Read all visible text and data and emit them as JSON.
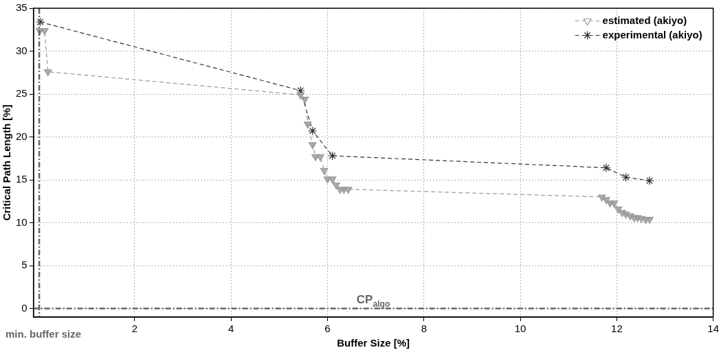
{
  "chart_data": {
    "type": "line",
    "xlabel": "Buffer Size [%]",
    "ylabel": "Critical Path Length [%]",
    "xlim": [
      -0.1,
      14
    ],
    "ylim": [
      -1,
      35
    ],
    "xticks": [
      2,
      4,
      6,
      8,
      10,
      12,
      14
    ],
    "yticks": [
      0,
      5,
      10,
      15,
      20,
      25,
      30,
      35
    ],
    "grid": true,
    "legend": "top right",
    "line_style": "dashed",
    "series": [
      {
        "name": "estimated (akiyo)",
        "color": "#999999",
        "marker": "triangle",
        "x": [
          0.03,
          0.13,
          0.2,
          5.44,
          5.53,
          5.59,
          5.69,
          5.75,
          5.85,
          5.93,
          6.0,
          6.1,
          6.18,
          6.26,
          6.34,
          6.43,
          11.69,
          11.78,
          11.86,
          11.94,
          12.03,
          12.11,
          12.19,
          12.28,
          12.36,
          12.43,
          12.51,
          12.6,
          12.68
        ],
        "values": [
          32.4,
          32.4,
          27.6,
          24.9,
          24.4,
          21.5,
          19.1,
          17.7,
          17.7,
          16.1,
          15.1,
          15.1,
          14.4,
          13.9,
          13.9,
          13.9,
          13.0,
          12.7,
          12.3,
          12.3,
          11.6,
          11.2,
          11.0,
          10.8,
          10.6,
          10.6,
          10.5,
          10.4,
          10.4
        ]
      },
      {
        "name": "experimental (akiyo)",
        "color": "#333333",
        "marker": "cross",
        "x": [
          0.04,
          5.44,
          5.69,
          6.1,
          11.78,
          12.19,
          12.68
        ],
        "values": [
          33.4,
          25.4,
          20.7,
          17.8,
          16.4,
          15.3,
          14.9
        ]
      }
    ],
    "ref_lines": [
      {
        "axis": "x",
        "value": 0.02,
        "label": "min. buffer size",
        "color": "#666666",
        "line_style": "dashdot"
      },
      {
        "axis": "y",
        "value": 0,
        "label": "CP$_{algo}$",
        "color": "#666666",
        "line_style": "dashdot"
      }
    ]
  }
}
